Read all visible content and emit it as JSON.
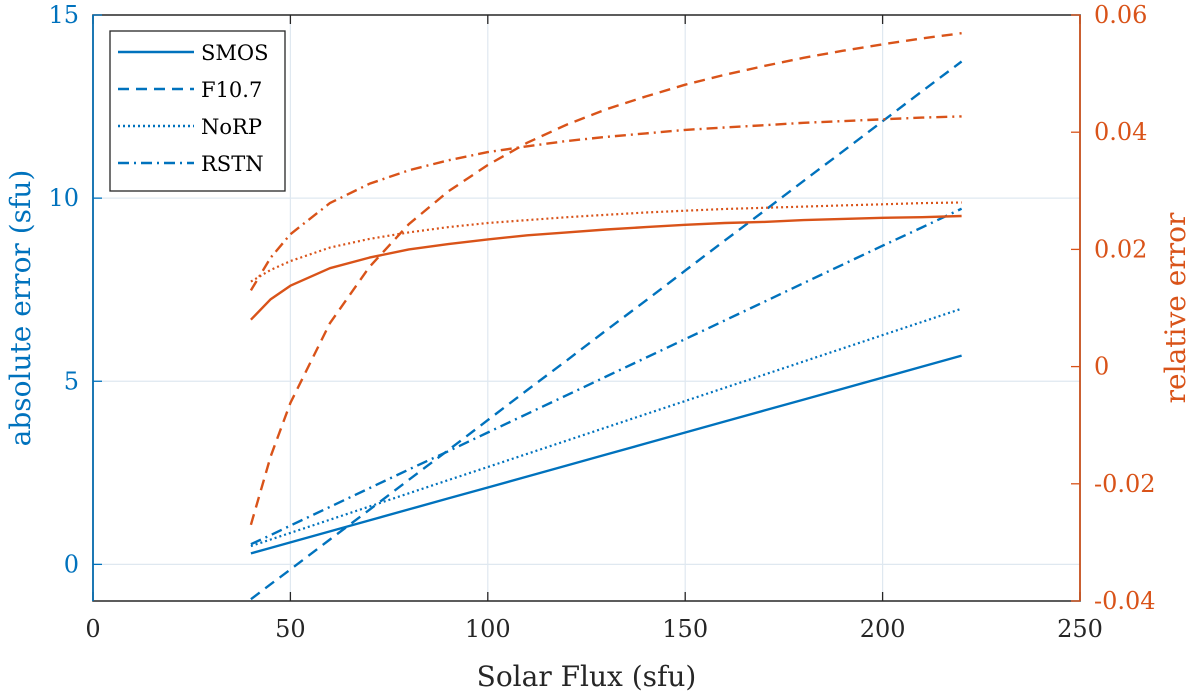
{
  "chart_data": {
    "type": "line",
    "xlabel": "Solar Flux (sfu)",
    "ylabel_left": "absolute error (sfu)",
    "ylabel_right": "relative error",
    "xlim": [
      0,
      250
    ],
    "ylim_left": [
      -1,
      15
    ],
    "ylim_right": [
      -0.04,
      0.06
    ],
    "x_ticks": [
      0,
      50,
      100,
      150,
      200,
      250
    ],
    "x_tick_labels": [
      "0",
      "50",
      "100",
      "150",
      "200",
      "250"
    ],
    "y_left_ticks": [
      0,
      5,
      10,
      15
    ],
    "y_left_tick_labels": [
      "0",
      "5",
      "10",
      "15"
    ],
    "y_right_ticks": [
      -0.04,
      -0.02,
      0,
      0.02,
      0.04,
      0.06
    ],
    "y_right_tick_labels": [
      "-0.04",
      "-0.02",
      "0",
      "0.02",
      "0.04",
      "0.06"
    ],
    "grid": true,
    "legend_position": "top-left",
    "colors": {
      "left_axis": "#0072BD",
      "right_axis": "#D95319",
      "grid": "#dfe8f0"
    },
    "x": [
      40,
      45,
      50,
      60,
      70,
      80,
      90,
      100,
      110,
      120,
      130,
      140,
      150,
      160,
      170,
      180,
      190,
      200,
      210,
      220
    ],
    "series": [
      {
        "name": "SMOS",
        "style": "solid",
        "axis": "left",
        "values": [
          0.3,
          0.45,
          0.6,
          0.9,
          1.2,
          1.5,
          1.8,
          2.1,
          2.4,
          2.7,
          3.0,
          3.3,
          3.6,
          3.9,
          4.2,
          4.5,
          4.8,
          5.1,
          5.4,
          5.7
        ]
      },
      {
        "name": "F10.7",
        "style": "dashed",
        "axis": "left",
        "values": [
          -0.95,
          -0.54,
          -0.14,
          0.68,
          1.49,
          2.31,
          3.12,
          3.94,
          4.76,
          5.57,
          6.39,
          7.2,
          8.02,
          8.84,
          9.65,
          10.47,
          11.28,
          12.1,
          12.92,
          13.73
        ]
      },
      {
        "name": "NoRP",
        "style": "dotted",
        "axis": "left",
        "values": [
          0.5,
          0.68,
          0.86,
          1.22,
          1.58,
          1.94,
          2.3,
          2.66,
          3.02,
          3.38,
          3.74,
          4.1,
          4.46,
          4.82,
          5.18,
          5.54,
          5.9,
          6.26,
          6.62,
          6.98
        ]
      },
      {
        "name": "RSTN",
        "style": "dashdot",
        "axis": "left",
        "values": [
          0.55,
          0.8,
          1.06,
          1.57,
          2.08,
          2.59,
          3.09,
          3.6,
          4.11,
          4.62,
          5.13,
          5.64,
          6.15,
          6.66,
          7.17,
          7.68,
          8.19,
          8.7,
          9.2,
          9.71
        ]
      },
      {
        "name": "SMOS",
        "style": "solid",
        "axis": "right",
        "values": [
          0.008,
          0.0115,
          0.0138,
          0.0168,
          0.0186,
          0.02,
          0.0209,
          0.0217,
          0.0224,
          0.0229,
          0.0234,
          0.0238,
          0.0242,
          0.0245,
          0.0247,
          0.025,
          0.0252,
          0.0254,
          0.0255,
          0.0257
        ]
      },
      {
        "name": "F10.7",
        "style": "dashed",
        "axis": "right",
        "values": [
          -0.027,
          -0.0153,
          -0.0062,
          0.0074,
          0.017,
          0.0243,
          0.0299,
          0.0344,
          0.0382,
          0.0413,
          0.0439,
          0.0461,
          0.0481,
          0.0498,
          0.0513,
          0.0527,
          0.0539,
          0.055,
          0.056,
          0.0569
        ]
      },
      {
        "name": "NoRP",
        "style": "dotted",
        "axis": "right",
        "values": [
          0.0145,
          0.0165,
          0.018,
          0.0203,
          0.0218,
          0.0229,
          0.0238,
          0.0245,
          0.025,
          0.0255,
          0.0259,
          0.0263,
          0.0266,
          0.0269,
          0.0271,
          0.0273,
          0.0275,
          0.0277,
          0.0279,
          0.028
        ]
      },
      {
        "name": "RSTN",
        "style": "dashdot",
        "axis": "right",
        "values": [
          0.013,
          0.0186,
          0.0226,
          0.0279,
          0.0312,
          0.0335,
          0.0352,
          0.0366,
          0.0376,
          0.0385,
          0.0392,
          0.0398,
          0.0404,
          0.0408,
          0.0412,
          0.0416,
          0.0419,
          0.0422,
          0.0425,
          0.0427
        ]
      }
    ],
    "legend": [
      {
        "label": "SMOS",
        "style": "solid"
      },
      {
        "label": "F10.7",
        "style": "dashed"
      },
      {
        "label": "NoRP",
        "style": "dotted"
      },
      {
        "label": "RSTN",
        "style": "dashdot"
      }
    ]
  }
}
